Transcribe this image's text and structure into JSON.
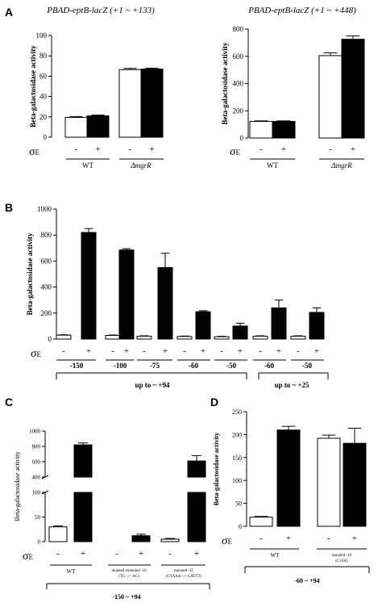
{
  "chart_data": [
    {
      "panel": "A",
      "type": "bar",
      "title": "PBAD-eptB-lacZ (+1 ~ +133)",
      "ylabel": "Beta-galactosidase activity",
      "ylim": [
        0,
        100
      ],
      "yticks": [
        "0",
        "20",
        "40",
        "60",
        "80",
        "100"
      ],
      "sigma_label": "σE",
      "categories": [
        "-",
        "+",
        "-",
        "+"
      ],
      "bar_fill": [
        "white",
        "black",
        "white",
        "black"
      ],
      "values": [
        19.5,
        21,
        66.5,
        67
      ],
      "errors": [
        0.8,
        0.8,
        1.2,
        1.0
      ],
      "groups": [
        {
          "label": "WT",
          "italic": false
        },
        {
          "label": "ΔmgrR",
          "italic": true
        }
      ]
    },
    {
      "panel": "A",
      "type": "bar",
      "title": "PBAD-eptB-lacZ (+1 ~ +448)",
      "ylabel": "Beta-galactosidase activity",
      "ylim": [
        0,
        800
      ],
      "yticks": [
        "0",
        "200",
        "400",
        "600",
        "800"
      ],
      "sigma_label": "σE",
      "categories": [
        "-",
        "+",
        "-",
        "+"
      ],
      "bar_fill": [
        "white",
        "black",
        "white",
        "black"
      ],
      "values": [
        122,
        122,
        605,
        725
      ],
      "errors": [
        4,
        4,
        20,
        25
      ],
      "groups": [
        {
          "label": "WT",
          "italic": false
        },
        {
          "label": "ΔmgrR",
          "italic": true
        }
      ]
    },
    {
      "panel": "B",
      "type": "bar",
      "ylabel": "Beta-galactosidase activity",
      "ylim": [
        0,
        1000
      ],
      "yticks": [
        "0",
        "200",
        "400",
        "600",
        "800",
        "1000"
      ],
      "sigma_label": "σE",
      "categories": [
        "-",
        "+",
        "-",
        "+",
        "-",
        "+",
        "-",
        "+",
        "-",
        "+",
        "-",
        "+",
        "-",
        "+"
      ],
      "bar_fill": [
        "white",
        "black",
        "white",
        "black",
        "white",
        "black",
        "white",
        "black",
        "white",
        "black",
        "white",
        "black",
        "white",
        "black"
      ],
      "values": [
        30,
        820,
        28,
        685,
        22,
        550,
        20,
        210,
        18,
        100,
        22,
        240,
        22,
        205
      ],
      "errors": [
        3,
        30,
        3,
        10,
        3,
        110,
        3,
        8,
        3,
        22,
        3,
        60,
        3,
        35
      ],
      "groups": [
        {
          "label": "-150"
        },
        {
          "label": "-100"
        },
        {
          "label": "-75"
        },
        {
          "label": "-60"
        },
        {
          "label": "-50"
        },
        {
          "label": "-60"
        },
        {
          "label": "-50"
        }
      ],
      "brackets": [
        {
          "label": "up to ~ +94",
          "from_group": 0,
          "to_group": 4
        },
        {
          "label": "up to ~ +25",
          "from_group": 5,
          "to_group": 6
        }
      ]
    },
    {
      "panel": "C",
      "type": "bar",
      "ylabel": "Beta-galactosidase activity",
      "ylim": [
        0,
        1000
      ],
      "axis_break": [
        100,
        400
      ],
      "yticks": [
        "0",
        "50",
        "100",
        "400",
        "600",
        "800",
        "1000"
      ],
      "sigma_label": "σE",
      "categories": [
        "-",
        "+",
        "-",
        "+",
        "-",
        "+"
      ],
      "bar_fill": [
        "white",
        "black",
        "white",
        "black",
        "white",
        "black"
      ],
      "values": [
        30,
        820,
        0,
        12,
        5,
        610
      ],
      "errors": [
        2,
        25,
        0,
        3,
        1.5,
        70
      ],
      "groups": [
        {
          "label": "WT"
        },
        {
          "label": "mutated extended -10 (TG --> AC)"
        },
        {
          "label": "mutated -35 (GTAAA --> CATTT)"
        }
      ],
      "bottom_label": "-150 ~ +94"
    },
    {
      "panel": "D",
      "type": "bar",
      "ylabel": "Beta-galactosidase activity",
      "ylim": [
        0,
        250
      ],
      "yticks": [
        "0",
        "50",
        "100",
        "150",
        "200",
        "250"
      ],
      "sigma_label": "σE",
      "categories": [
        "-",
        "+",
        "-",
        "+"
      ],
      "bar_fill": [
        "white",
        "black",
        "white",
        "black"
      ],
      "values": [
        20,
        210,
        192,
        181
      ],
      "errors": [
        1.5,
        8,
        7,
        33
      ],
      "groups": [
        {
          "label": "WT"
        },
        {
          "label": "mutated -10 (C10A)"
        }
      ],
      "bottom_label": "-60 ~ +94"
    }
  ],
  "labels": {
    "panel_a": "A",
    "panel_b": "B",
    "panel_c": "C",
    "panel_d": "D"
  }
}
